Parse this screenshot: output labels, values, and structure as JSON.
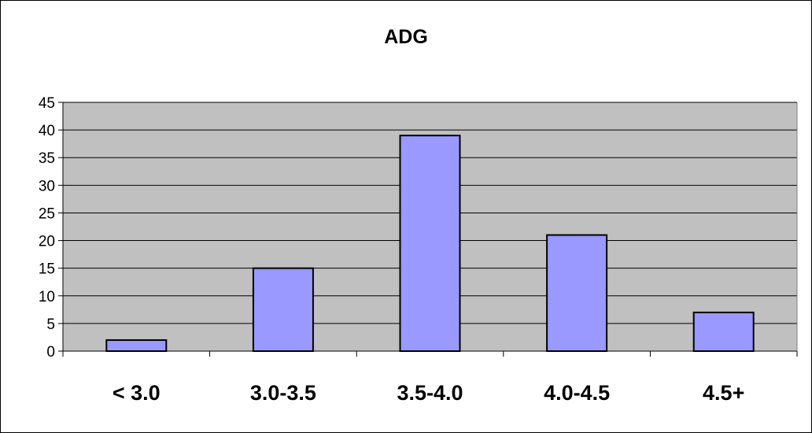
{
  "chart_data": {
    "type": "bar",
    "title": "ADG",
    "categories": [
      "< 3.0",
      "3.0-3.5",
      "3.5-4.0",
      "4.0-4.5",
      "4.5+"
    ],
    "values": [
      2,
      15,
      39,
      21,
      7
    ],
    "ylim": [
      0,
      45
    ],
    "yticks": [
      "0",
      "5",
      "10",
      "15",
      "20",
      "25",
      "30",
      "35",
      "40",
      "45"
    ],
    "grid": true,
    "legend": "none",
    "colors": {
      "plot_background": "#c0c0c0",
      "bar_fill": "#9999ff",
      "bar_stroke": "#000000",
      "gridline": "#000000"
    }
  }
}
